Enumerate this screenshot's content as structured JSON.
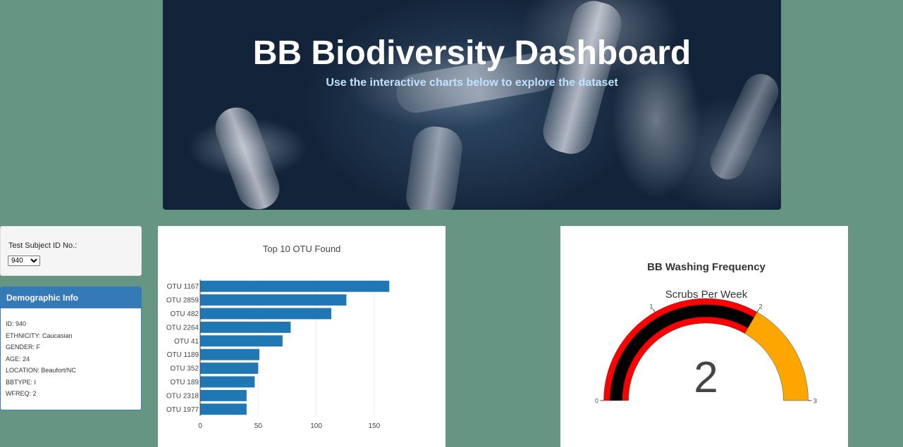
{
  "header": {
    "title": "BB Biodiversity Dashboard",
    "subtitle": "Use the interactive charts below to explore the dataset"
  },
  "selector": {
    "label": "Test Subject ID No.:",
    "selected": "940"
  },
  "demographics": {
    "title": "Demographic Info",
    "rows": [
      "ID: 940",
      "ETHNICITY: Caucasian",
      "GENDER: F",
      "AGE: 24",
      "LOCATION: Beaufort/NC",
      "BBTYPE: I",
      "WFREQ: 2"
    ]
  },
  "chart_data": [
    {
      "type": "bar",
      "orientation": "horizontal",
      "title": "Top 10 OTU Found",
      "categories": [
        "OTU 1167",
        "OTU 2859",
        "OTU 482",
        "OTU 2264",
        "OTU 41",
        "OTU 1189",
        "OTU 352",
        "OTU 189",
        "OTU 2318",
        "OTU 1977"
      ],
      "values": [
        163,
        126,
        113,
        78,
        71,
        51,
        50,
        47,
        40,
        40
      ],
      "xlim": [
        0,
        175
      ],
      "xticks": [
        0,
        50,
        100,
        150
      ],
      "bar_color": "#1f77b4",
      "grid": true
    },
    {
      "type": "gauge",
      "title": "BB Washing Frequency",
      "subtitle": "Scrubs Per Week",
      "value": 2,
      "range": [
        0,
        3
      ],
      "ticks": [
        0,
        1,
        2,
        3
      ],
      "bar_color": "#000000",
      "steps": [
        {
          "range": [
            0,
            2
          ],
          "color": "#ff0000"
        },
        {
          "range": [
            2,
            3
          ],
          "color": "#ffa500"
        }
      ]
    }
  ]
}
